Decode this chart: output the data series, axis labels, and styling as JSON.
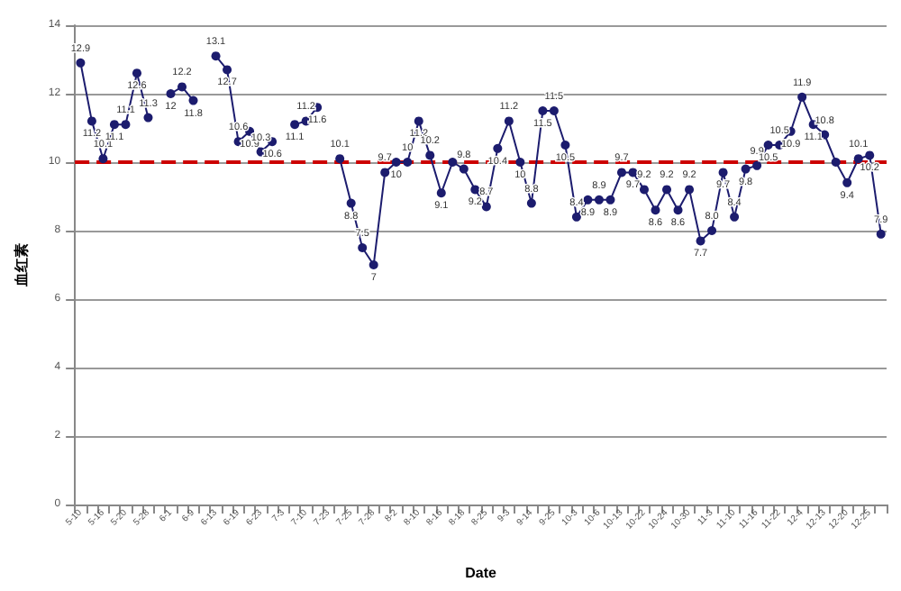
{
  "chart_data": {
    "type": "line",
    "xlabel": "Date",
    "ylabel": "血红素",
    "categories": [
      "5-10",
      null,
      "5-16",
      null,
      "5-20",
      null,
      "5-28",
      null,
      "6-1",
      null,
      "6-9",
      null,
      "6-13",
      null,
      "6-19",
      null,
      "6-23",
      null,
      "7-3",
      null,
      "7-10",
      null,
      "7-23",
      null,
      "7-25",
      null,
      "7-28",
      null,
      "8-2",
      null,
      "8-10",
      null,
      "8-16",
      null,
      "8-18",
      null,
      "8-25",
      null,
      "9-3",
      null,
      "9-14",
      null,
      "9-25",
      null,
      "10-3",
      null,
      "10-6",
      null,
      "10-13",
      null,
      "10-22",
      null,
      "10-24",
      null,
      "10-30",
      null,
      "11-3",
      null,
      "11-10",
      null,
      "11-16",
      null,
      "11-22",
      null,
      "12-4",
      null,
      "12-13",
      null,
      "12-20",
      null,
      "12-25",
      null
    ],
    "series": [
      {
        "color": "#1c1c6e",
        "values": [
          12.9,
          11.2,
          10.1,
          11.1,
          11.1,
          12.6,
          11.3,
          null,
          12,
          12.2,
          11.8,
          null,
          13.1,
          12.7,
          10.6,
          10.9,
          10.3,
          10.6,
          null,
          11.1,
          11.2,
          11.6,
          null,
          10.1,
          8.8,
          7.5,
          7,
          9.7,
          10,
          10,
          11.2,
          10.2,
          9.1,
          10,
          9.8,
          9.2,
          8.7,
          10.4,
          11.2,
          10,
          8.8,
          11.5,
          11.5,
          10.5,
          8.4,
          8.9,
          8.9,
          8.9,
          9.7,
          9.7,
          9.2,
          8.6,
          9.2,
          8.6,
          9.2,
          7.7,
          8.0,
          9.7,
          8.4,
          9.8,
          9.9,
          10.5,
          10.5,
          10.9,
          11.9,
          11.1,
          10.8,
          10,
          9.4,
          10.1,
          10.2,
          7.9
        ],
        "value_labels": [
          "12.9",
          "11.2",
          "10.1",
          "11.1",
          "11.1",
          "12.6",
          "11.3",
          null,
          "12",
          "12.2",
          "11.8",
          null,
          "13.1",
          "12.7",
          "10.6",
          "10.9",
          "10.3",
          "10.6",
          null,
          "11.1",
          "11.2",
          "11.6",
          null,
          "10.1",
          "8.8",
          "7.5",
          "7",
          "9.7",
          "10",
          "10",
          "11.2",
          "10.2",
          "9.1",
          null,
          "9.8",
          "9.2",
          "8.7",
          "10.4",
          "11.2",
          "10",
          "8.8",
          "11.5",
          "11.5",
          "10.5",
          "8.4",
          "8.9",
          "8.9",
          "8.9",
          "9.7",
          "9.7",
          "9.2",
          "8.6",
          "9.2",
          "8.6",
          "9.2",
          "7.7",
          "8.0",
          "9.7",
          "8.4",
          "9.8",
          "9.9",
          "10.5",
          "10.5",
          "10.9",
          "11.9",
          "11.1",
          "10.8",
          null,
          "9.4",
          "10.1",
          "10.2",
          "7.9"
        ]
      }
    ],
    "ylim": [
      0,
      14
    ],
    "yticks": [
      0,
      2,
      4,
      6,
      8,
      10,
      12,
      14
    ],
    "grid": "y",
    "marker": "circle",
    "line_style": "solid",
    "ref_lines": [
      {
        "axis": "y",
        "value": 10,
        "color": "#cc0000",
        "line_style": "dashed"
      }
    ]
  }
}
